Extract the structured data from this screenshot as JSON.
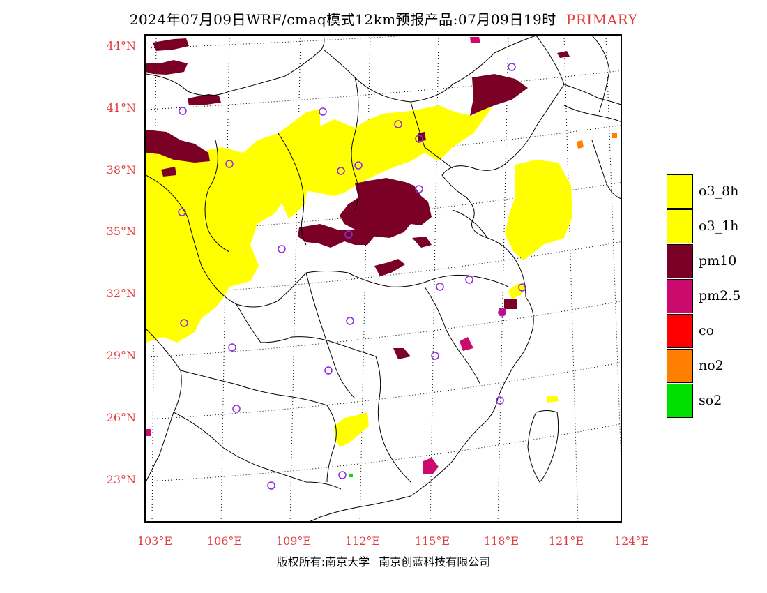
{
  "title": {
    "main": "2024年07月09日WRF/cmaq模式12km预报产品:07月09日19时",
    "mode": "PRIMARY"
  },
  "lat_labels": [
    "44°N",
    "41°N",
    "38°N",
    "35°N",
    "32°N",
    "29°N",
    "26°N",
    "23°N"
  ],
  "lon_labels": [
    "103°E",
    "106°E",
    "109°E",
    "112°E",
    "115°E",
    "118°E",
    "121°E",
    "124°E"
  ],
  "legend": [
    {
      "label": "o3_8h",
      "color": "#ffff00"
    },
    {
      "label": "o3_1h",
      "color": "#ffff00"
    },
    {
      "label": "pm10",
      "color": "#7b0026"
    },
    {
      "label": "pm2.5",
      "color": "#cc0a6e"
    },
    {
      "label": "co",
      "color": "#ff0000"
    },
    {
      "label": "no2",
      "color": "#ff8000"
    },
    {
      "label": "so2",
      "color": "#00e000"
    }
  ],
  "copyright": {
    "left": "版权所有:南京大学",
    "right": "南京创蓝科技有限公司"
  },
  "colors": {
    "axis_label": "#e23c3c",
    "site_marker": "#8a2be2"
  }
}
